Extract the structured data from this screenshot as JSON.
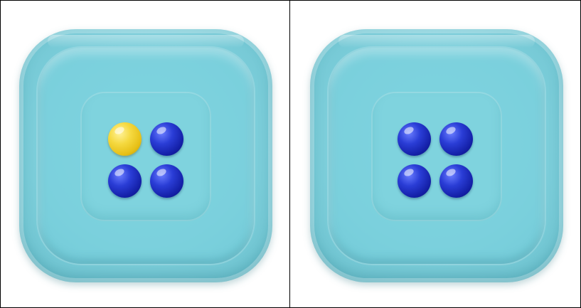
{
  "scene": {
    "panels": [
      {
        "id": "left",
        "balls": [
          {
            "row": 1,
            "col": 1,
            "color": "#f2d33a",
            "color_name": "yellow"
          },
          {
            "row": 1,
            "col": 2,
            "color": "#1e2fc4",
            "color_name": "blue"
          },
          {
            "row": 2,
            "col": 1,
            "color": "#1e2fc4",
            "color_name": "blue"
          },
          {
            "row": 2,
            "col": 2,
            "color": "#1e2fc4",
            "color_name": "blue"
          }
        ]
      },
      {
        "id": "right",
        "balls": [
          {
            "row": 1,
            "col": 1,
            "color": "#1e2fc4",
            "color_name": "blue"
          },
          {
            "row": 1,
            "col": 2,
            "color": "#1e2fc4",
            "color_name": "blue"
          },
          {
            "row": 2,
            "col": 1,
            "color": "#1e2fc4",
            "color_name": "blue"
          },
          {
            "row": 2,
            "col": 2,
            "color": "#1e2fc4",
            "color_name": "blue"
          }
        ]
      }
    ],
    "tray_color": "#7ecfdb",
    "background": "#ffffff"
  }
}
